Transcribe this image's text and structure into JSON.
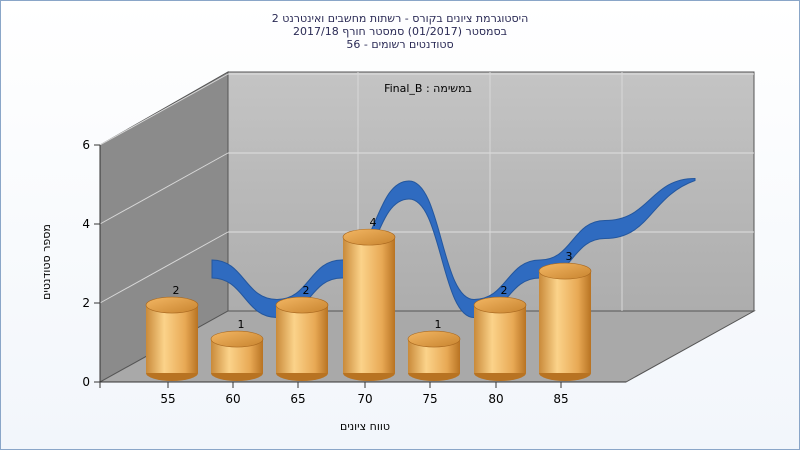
{
  "chart_data": {
    "type": "bar",
    "title_lines": [
      "היסטוגרמת ציונים בקורס - רשתות מחשבים ואינטרנט 2",
      "בסמסטר  (01/2017)  סמסטר חורף 2017/18",
      "סטודנטים רשומים - 56"
    ],
    "inner_title": "במשימה : Final_B",
    "xlabel": "טווח ציונים",
    "ylabel": "מספר סטודנטים",
    "x_ticks": [
      "55",
      "60",
      "65",
      "70",
      "75",
      "80",
      "85"
    ],
    "y_ticks": [
      "0",
      "2",
      "4",
      "6"
    ],
    "ylim": [
      0,
      6
    ],
    "values": [
      2,
      1,
      2,
      4,
      1,
      2,
      3
    ],
    "data_labels": [
      "2",
      "1",
      "2",
      "4",
      "1",
      "2",
      "3"
    ],
    "has_trend_line": true,
    "grid": true,
    "colors": {
      "bar_light": "#fbd38a",
      "bar_mid": "#e6a54e",
      "bar_dark": "#b87322",
      "trend": "#2f6bc0",
      "back_wall": "#b9b9b9",
      "side_wall": "#8a8a8a",
      "floor": "#a8a8a8"
    }
  }
}
